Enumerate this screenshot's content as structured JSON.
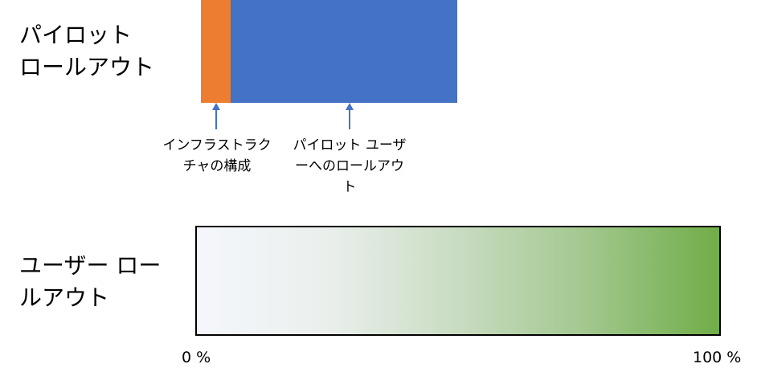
{
  "pilot": {
    "label": "パイロット\nロールアウト",
    "segments": [
      {
        "name": "infra",
        "color": "#ED7D31"
      },
      {
        "name": "pilot",
        "color": "#4472C4"
      }
    ],
    "annotations": {
      "infra": "インフラストラクチャの構成",
      "pilot": "パイロット ユーザーへのロールアウト"
    },
    "arrow_color": "#4472C4"
  },
  "user": {
    "label": "ユーザー ロールアウト",
    "gradient": {
      "start_color": "#F5F7FC",
      "end_color": "#70AD47"
    }
  },
  "scale": {
    "start": "0 %",
    "end": "100 %"
  }
}
